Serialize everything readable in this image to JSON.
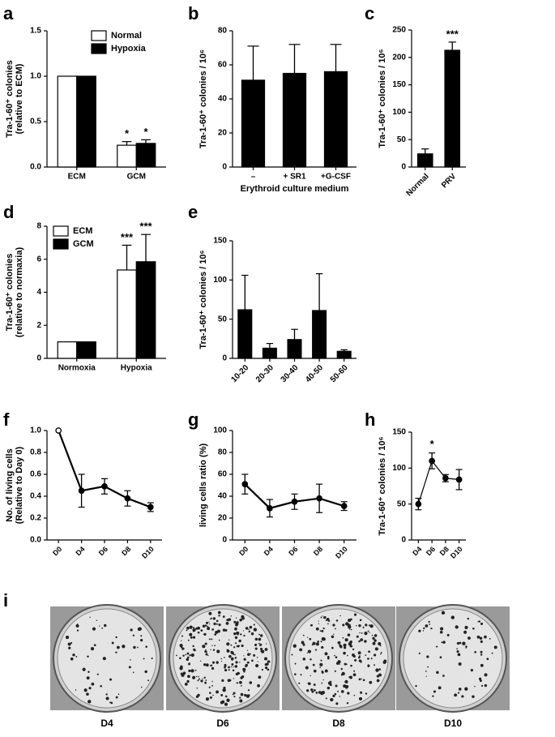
{
  "chart_data": [
    {
      "type": "bar",
      "panel": "a",
      "ylabel": [
        "Tra-1-60⁺ colonies",
        "(relative to ECM)"
      ],
      "categories": [
        "ECM",
        "GCM"
      ],
      "series": [
        {
          "name": "Normal",
          "color": "#ffffff",
          "values": [
            1.0,
            0.24
          ],
          "errors": [
            0,
            0.04
          ],
          "significance": [
            null,
            "*"
          ]
        },
        {
          "name": "Hypoxia",
          "color": "#000000",
          "values": [
            1.0,
            0.26
          ],
          "errors": [
            0,
            0.04
          ],
          "significance": [
            null,
            "*"
          ]
        }
      ],
      "ylim": [
        0,
        1.5
      ],
      "yticks": [
        {
          "value": 0,
          "label": "0.0"
        },
        0.5,
        {
          "value": 1,
          "label": "1.0"
        },
        1.5
      ],
      "legend": "top-right"
    },
    {
      "type": "bar",
      "panel": "b",
      "ylabel": [
        "Tra-1-60⁺ colonies / 10⁶"
      ],
      "xlabel": "Erythroid culture medium",
      "categories": [
        "–",
        "+ SR1",
        "+G-CSF"
      ],
      "series": [
        {
          "color": "#000000",
          "values": [
            51,
            55,
            56
          ],
          "errors": [
            20,
            17,
            16
          ]
        }
      ],
      "ylim": [
        0,
        80
      ],
      "yticks": [
        0,
        20,
        40,
        60,
        80
      ]
    },
    {
      "type": "bar",
      "panel": "c",
      "ylabel": [
        "Tra-1-60⁺ colonies / 10⁶"
      ],
      "categories": [
        "Normal",
        "PRV"
      ],
      "xtick_rotation": 45,
      "series": [
        {
          "color": "#000000",
          "values": [
            24,
            213
          ],
          "errors": [
            9,
            15
          ],
          "significance": [
            null,
            "***"
          ]
        }
      ],
      "ylim": [
        0,
        250
      ],
      "yticks": [
        0,
        50,
        100,
        150,
        200,
        250
      ]
    },
    {
      "type": "bar",
      "panel": "d",
      "ylabel": [
        "Tra-1-60⁺ colonies",
        "(relative to normaxia)"
      ],
      "categories": [
        "Normoxia",
        "Hypoxia"
      ],
      "series": [
        {
          "name": "ECM",
          "color": "#ffffff",
          "values": [
            1.0,
            5.35
          ],
          "errors": [
            0,
            1.5
          ],
          "significance": [
            null,
            "***"
          ]
        },
        {
          "name": "GCM",
          "color": "#000000",
          "values": [
            1.0,
            5.85
          ],
          "errors": [
            0,
            1.65
          ],
          "significance": [
            null,
            "***"
          ]
        }
      ],
      "ylim": [
        0,
        8
      ],
      "yticks": [
        0,
        2,
        4,
        6,
        8
      ],
      "legend": "top-left"
    },
    {
      "type": "bar",
      "panel": "e",
      "ylabel": [
        "Tra-1-60⁺ colonies / 10⁶"
      ],
      "categories": [
        "10-20",
        "20-30",
        "30-40",
        "40-50",
        "50-60"
      ],
      "xtick_rotation": 45,
      "series": [
        {
          "color": "#000000",
          "values": [
            62,
            13,
            24,
            61,
            9
          ],
          "errors": [
            44,
            6,
            13,
            47,
            2
          ]
        }
      ],
      "ylim": [
        0,
        150
      ],
      "yticks": [
        0,
        50,
        100,
        150
      ]
    },
    {
      "type": "line",
      "panel": "f",
      "ylabel": [
        "No. of living cells",
        "(Relative to Day 0)"
      ],
      "categories": [
        "D0",
        "D4",
        "D6",
        "D8",
        "D10"
      ],
      "xtick_rotation": 45,
      "series": [
        {
          "color": "#000000",
          "values": [
            1.0,
            0.45,
            0.49,
            0.38,
            0.3
          ],
          "errors": [
            0,
            0.15,
            0.07,
            0.07,
            0.04
          ]
        }
      ],
      "ylim": [
        0,
        1
      ],
      "yticks": [
        {
          "value": 0,
          "label": "0.0"
        },
        0.2,
        0.4,
        0.6,
        0.8,
        {
          "value": 1,
          "label": "1.0"
        }
      ]
    },
    {
      "type": "line",
      "panel": "g",
      "ylabel": [
        "living cells ratio (%)"
      ],
      "categories": [
        "D0",
        "D4",
        "D6",
        "D8",
        "D10"
      ],
      "xtick_rotation": 45,
      "series": [
        {
          "color": "#000000",
          "values": [
            51,
            29,
            35,
            38,
            31
          ],
          "errors": [
            9,
            8,
            7,
            13,
            4
          ]
        }
      ],
      "ylim": [
        0,
        100
      ],
      "yticks": [
        0,
        20,
        40,
        60,
        80,
        100
      ]
    },
    {
      "type": "line",
      "panel": "h",
      "ylabel": [
        "Tra-1-60⁺ colonies / 10⁶"
      ],
      "categories": [
        "D4",
        "D6",
        "D8",
        "D10"
      ],
      "xtick_rotation": 45,
      "series": [
        {
          "color": "#000000",
          "values": [
            50,
            110,
            86,
            84
          ],
          "errors": [
            8,
            11,
            5,
            14
          ],
          "significance": [
            null,
            "*",
            null,
            null
          ]
        }
      ],
      "ylim": [
        0,
        150
      ],
      "yticks": [
        0,
        50,
        100,
        150
      ]
    }
  ],
  "plates": {
    "panel": "i",
    "labels": [
      "D4",
      "D6",
      "D8",
      "D10"
    ]
  }
}
